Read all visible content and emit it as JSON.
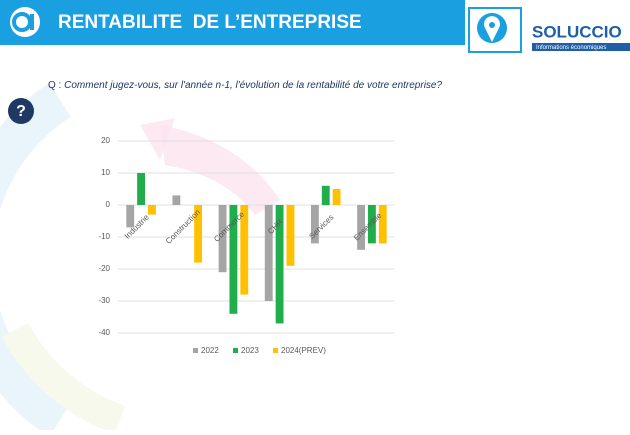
{
  "header": {
    "title": "RENTABILITE  DE L’ENTREPRISE",
    "brand": "SOLUCCIO",
    "brand_tagline": "Informations économiques"
  },
  "question_prefix": "Q :",
  "question": "Comment jugez-vous, sur l'année n-1, l'évolution de la rentabilité de votre entreprise?",
  "help_icon": "?",
  "chart_data": {
    "type": "bar",
    "categories": [
      "Industrie",
      "Construction",
      "Commerce",
      "CHR",
      "Services",
      "Ensemble"
    ],
    "series": [
      {
        "name": "2022",
        "color": "#a5a5a5",
        "values": [
          -7,
          3,
          -21,
          -30,
          -12,
          -14
        ]
      },
      {
        "name": "2023",
        "color": "#1fae4b",
        "values": [
          10,
          0,
          -34,
          -37,
          6,
          -12
        ]
      },
      {
        "name": "2024(PREV)",
        "color": "#ffc000",
        "values": [
          -3,
          -18,
          -28,
          -19,
          5,
          -12
        ]
      }
    ],
    "ylim": [
      -40,
      20
    ],
    "yticks": [
      -40,
      -30,
      -20,
      -10,
      0,
      10,
      20
    ],
    "grid": true,
    "legend": "bottom"
  }
}
